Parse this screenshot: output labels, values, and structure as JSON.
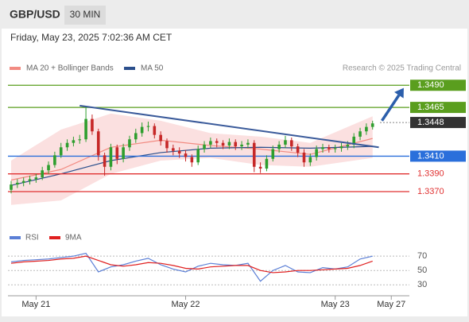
{
  "header": {
    "symbol": "GBP/USD",
    "interval": "30 MIN",
    "timestamp": "Friday, May 23, 2025 7:02:36 AM CET"
  },
  "chart_data": [
    {
      "type": "candlestick",
      "credit": "Research © 2025 Trading Central",
      "categories": [
        null,
        null,
        null,
        null,
        "May 21",
        null,
        null,
        null,
        null,
        null,
        null,
        null,
        null,
        null,
        null,
        null,
        null,
        null,
        null,
        null,
        null,
        null,
        null,
        null,
        null,
        null,
        null,
        null,
        "May 22",
        null,
        null,
        null,
        null,
        null,
        null,
        null,
        null,
        null,
        null,
        null,
        null,
        null,
        null,
        null,
        null,
        null,
        null,
        null,
        null,
        null,
        null,
        null,
        "May 23",
        null,
        null,
        null,
        null,
        null,
        null,
        null,
        null,
        "May 27",
        null,
        null
      ],
      "candles": [
        [
          1.3372,
          1.3382,
          1.3368,
          1.3378
        ],
        [
          1.3378,
          1.3384,
          1.3374,
          1.338
        ],
        [
          1.338,
          1.3386,
          1.3376,
          1.3382
        ],
        [
          1.3382,
          1.3388,
          1.3378,
          1.3384
        ],
        [
          1.3384,
          1.339,
          1.338,
          1.3386
        ],
        [
          1.3386,
          1.3398,
          1.3383,
          1.3394
        ],
        [
          1.3394,
          1.3404,
          1.339,
          1.34
        ],
        [
          1.34,
          1.3415,
          1.3397,
          1.3411
        ],
        [
          1.3411,
          1.3425,
          1.3408,
          1.342
        ],
        [
          1.342,
          1.3429,
          1.3416,
          1.3425
        ],
        [
          1.3425,
          1.3432,
          1.3421,
          1.3428
        ],
        [
          1.3428,
          1.3434,
          1.3424,
          1.3429
        ],
        [
          1.3429,
          1.3466,
          1.3426,
          1.3452
        ],
        [
          1.3452,
          1.3457,
          1.3434,
          1.3438
        ],
        [
          1.3438,
          1.3441,
          1.3405,
          1.3411
        ],
        [
          1.3411,
          1.3414,
          1.3388,
          1.3398
        ],
        [
          1.3398,
          1.3424,
          1.3394,
          1.342
        ],
        [
          1.342,
          1.3423,
          1.3401,
          1.3407
        ],
        [
          1.3407,
          1.3424,
          1.3403,
          1.342
        ],
        [
          1.342,
          1.3433,
          1.3416,
          1.3429
        ],
        [
          1.3429,
          1.3441,
          1.3425,
          1.3436
        ],
        [
          1.3436,
          1.3448,
          1.3432,
          1.3443
        ],
        [
          1.3443,
          1.3449,
          1.3438,
          1.3444
        ],
        [
          1.3444,
          1.3447,
          1.343,
          1.3434
        ],
        [
          1.3434,
          1.3438,
          1.3422,
          1.3427
        ],
        [
          1.3427,
          1.343,
          1.3414,
          1.3419
        ],
        [
          1.3419,
          1.3423,
          1.3411,
          1.3416
        ],
        [
          1.3416,
          1.342,
          1.3408,
          1.3413
        ],
        [
          1.3413,
          1.3417,
          1.3404,
          1.3409
        ],
        [
          1.3409,
          1.3412,
          1.3398,
          1.3403
        ],
        [
          1.3403,
          1.3422,
          1.34,
          1.3418
        ],
        [
          1.3418,
          1.3427,
          1.3414,
          1.3423
        ],
        [
          1.3423,
          1.3431,
          1.3419,
          1.3427
        ],
        [
          1.3427,
          1.343,
          1.342,
          1.3425
        ],
        [
          1.3425,
          1.3428,
          1.3418,
          1.3422
        ],
        [
          1.3422,
          1.343,
          1.3418,
          1.3426
        ],
        [
          1.3426,
          1.3429,
          1.3417,
          1.3421
        ],
        [
          1.3421,
          1.3427,
          1.3417,
          1.3423
        ],
        [
          1.3423,
          1.3429,
          1.3419,
          1.3425
        ],
        [
          1.3425,
          1.3428,
          1.3392,
          1.3398
        ],
        [
          1.3398,
          1.3403,
          1.3391,
          1.3396
        ],
        [
          1.3396,
          1.3411,
          1.3393,
          1.3407
        ],
        [
          1.3407,
          1.3422,
          1.3404,
          1.3418
        ],
        [
          1.3418,
          1.3427,
          1.3414,
          1.3423
        ],
        [
          1.3423,
          1.3433,
          1.3419,
          1.3428
        ],
        [
          1.3428,
          1.3431,
          1.3416,
          1.3421
        ],
        [
          1.3421,
          1.3424,
          1.3409,
          1.3414
        ],
        [
          1.3414,
          1.3418,
          1.3398,
          1.3403
        ],
        [
          1.3403,
          1.3413,
          1.3399,
          1.3409
        ],
        [
          1.3409,
          1.3422,
          1.3405,
          1.3418
        ],
        [
          1.3418,
          1.3424,
          1.3414,
          1.342
        ],
        [
          1.342,
          1.3423,
          1.3414,
          1.3418
        ],
        [
          1.3418,
          1.3423,
          1.3414,
          1.3419
        ],
        [
          1.3419,
          1.3425,
          1.3415,
          1.3421
        ],
        [
          1.3421,
          1.3427,
          1.3417,
          1.3423
        ],
        [
          1.3423,
          1.3436,
          1.3419,
          1.3432
        ],
        [
          1.3432,
          1.3442,
          1.3428,
          1.3438
        ],
        [
          1.3438,
          1.3447,
          1.3434,
          1.3443
        ],
        [
          1.3443,
          1.345,
          1.344,
          1.3447
        ],
        null,
        null,
        null,
        null,
        null
      ],
      "up_color": "#2e9e2e",
      "down_color": "#c62828",
      "series": [
        {
          "name": "MA 20 + Bollinger Bands",
          "type": "band",
          "color": "#f28b82",
          "band_color": "#fbe0e0",
          "x": [
            0,
            8,
            16,
            24,
            32,
            40,
            48,
            58
          ],
          "values": [
            1.3383,
            1.3395,
            1.342,
            1.3428,
            1.3422,
            1.3418,
            1.3412,
            1.343
          ],
          "upper": [
            1.3405,
            1.344,
            1.3458,
            1.345,
            1.3436,
            1.3432,
            1.3425,
            1.3455
          ],
          "lower": [
            1.3355,
            1.336,
            1.339,
            1.3405,
            1.3408,
            1.34,
            1.3398,
            1.3408
          ]
        },
        {
          "name": "MA 50",
          "type": "line",
          "color": "#2b4f8c",
          "x": [
            0,
            8,
            16,
            24,
            32,
            40,
            48,
            58
          ],
          "values": [
            1.3377,
            1.339,
            1.3405,
            1.3414,
            1.3419,
            1.342,
            1.3419,
            1.3421
          ]
        }
      ],
      "trendline": {
        "x": [
          11,
          59
        ],
        "values": [
          1.3467,
          1.342
        ],
        "color": "#3a5a9a"
      },
      "arrow": {
        "x": [
          59.5,
          63
        ],
        "values": [
          1.345,
          1.3487
        ],
        "color": "#2b5eab"
      },
      "levels": [
        {
          "value": 1.349,
          "label": "1.3490",
          "color": "#5a9e1e",
          "line": "solid",
          "tag": "box"
        },
        {
          "value": 1.3465,
          "label": "1.3465",
          "color": "#5a9e1e",
          "line": "solid",
          "tag": "box"
        },
        {
          "value": 1.3448,
          "label": "1.3448",
          "color": "#333333",
          "line": "dotted",
          "tag": "box"
        },
        {
          "value": 1.341,
          "label": "1.3410",
          "color": "#2a6fdb",
          "line": "solid",
          "tag": "box"
        },
        {
          "value": 1.339,
          "label": "1.3390",
          "color": "#e03030",
          "line": "solid",
          "tag": "text"
        },
        {
          "value": 1.337,
          "label": "1.3370",
          "color": "#e03030",
          "line": "solid",
          "tag": "text"
        }
      ],
      "ylim": [
        1.3335,
        1.3501
      ]
    },
    {
      "type": "line",
      "series": [
        {
          "name": "RSI",
          "color": "#5b7fd6",
          "x": [
            0,
            2,
            4,
            6,
            8,
            10,
            12,
            14,
            16,
            18,
            20,
            22,
            24,
            26,
            28,
            30,
            32,
            34,
            36,
            38,
            40,
            42,
            44,
            46,
            48,
            50,
            52,
            54,
            56,
            58
          ],
          "values": [
            62,
            64,
            65,
            66,
            68,
            70,
            74,
            48,
            55,
            58,
            63,
            67,
            58,
            52,
            48,
            56,
            60,
            58,
            57,
            60,
            35,
            50,
            57,
            48,
            47,
            54,
            52,
            55,
            66,
            70
          ]
        },
        {
          "name": "9MA",
          "color": "#e02020",
          "x": [
            0,
            2,
            4,
            6,
            8,
            10,
            12,
            14,
            16,
            18,
            20,
            22,
            24,
            26,
            28,
            30,
            32,
            34,
            36,
            38,
            40,
            42,
            44,
            46,
            48,
            50,
            52,
            54,
            56,
            58
          ],
          "values": [
            60,
            62,
            63,
            64,
            66,
            67,
            70,
            64,
            58,
            56,
            58,
            61,
            60,
            57,
            53,
            52,
            55,
            56,
            57,
            57,
            50,
            47,
            48,
            50,
            50,
            51,
            52,
            53,
            57,
            63
          ]
        }
      ],
      "ylim": [
        17,
        89
      ],
      "yticks": [
        30,
        50,
        70
      ]
    }
  ]
}
